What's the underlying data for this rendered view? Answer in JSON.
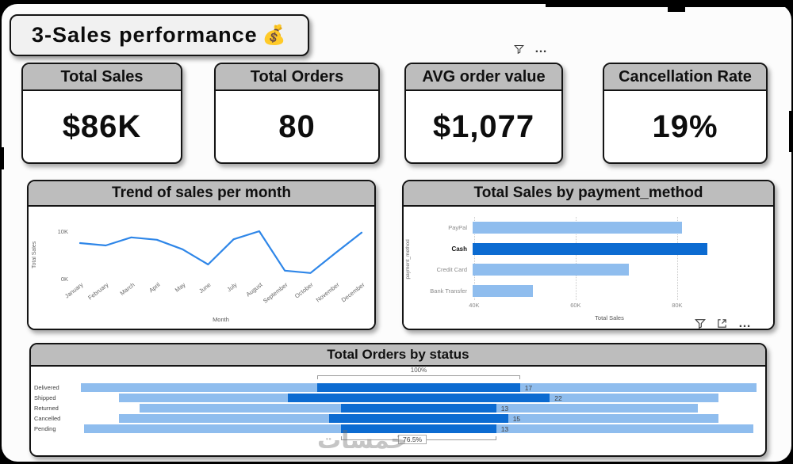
{
  "title": {
    "text": "3-Sales performance",
    "emoji": "💰"
  },
  "kpis": [
    {
      "label": "Total Sales",
      "value": "$86K"
    },
    {
      "label": "Total Orders",
      "value": "80"
    },
    {
      "label": "AVG order value",
      "value": "$1,077"
    },
    {
      "label": "Cancellation Rate",
      "value": "19%"
    }
  ],
  "icons": {
    "top_toolbar": [
      "filter",
      "more-options"
    ],
    "chart_toolbar": [
      "filter",
      "focus-mode",
      "more-options"
    ],
    "more_glyph": "…"
  },
  "colors": {
    "header_gray": "#bdbdbd",
    "bar_light": "#8fbdee",
    "bar_dark": "#0c6bd1",
    "line_stroke": "#2e86e8"
  },
  "watermark": "خمسات",
  "chart_data": [
    {
      "type": "line",
      "title": "Trend of sales per month",
      "xlabel": "Month",
      "ylabel": "Total Sales",
      "unit": "K",
      "x": [
        "January",
        "February",
        "March",
        "April",
        "May",
        "June",
        "July",
        "August",
        "September",
        "October",
        "November",
        "December"
      ],
      "values": [
        7.5,
        7.0,
        8.7,
        8.2,
        6.2,
        3.0,
        8.3,
        10.0,
        1.7,
        1.2,
        5.5,
        9.7
      ],
      "ylim": [
        0,
        10
      ],
      "yticks": [
        {
          "v": 0,
          "label": "0K"
        },
        {
          "v": 10,
          "label": "10K"
        }
      ]
    },
    {
      "type": "bar",
      "title": "Total Sales by payment_method",
      "xlabel": "Total Sales",
      "ylabel": "payment_method",
      "unit": "K",
      "categories": [
        "PayPal",
        "Cash",
        "Credit Card",
        "Bank Transfer"
      ],
      "values": [
        81,
        86,
        70.5,
        51.5
      ],
      "highlight_category": "Cash",
      "xlim": [
        39.7,
        93.6
      ],
      "xticks": [
        {
          "v": 40,
          "label": "40K"
        },
        {
          "v": 60,
          "label": "60K"
        },
        {
          "v": 80,
          "label": "80K"
        }
      ]
    },
    {
      "type": "funnel",
      "title": "Total Orders by status",
      "categories": [
        "Delivered",
        "Shipped",
        "Returned",
        "Cancelled",
        "Pending"
      ],
      "values": [
        17,
        22,
        13,
        15,
        13
      ],
      "background_width_fractions": [
        0.98,
        0.87,
        0.81,
        0.87,
        0.97
      ],
      "max_bar_fraction": 0.38,
      "top_label": "100%",
      "bottom_label": "76.5%"
    }
  ]
}
